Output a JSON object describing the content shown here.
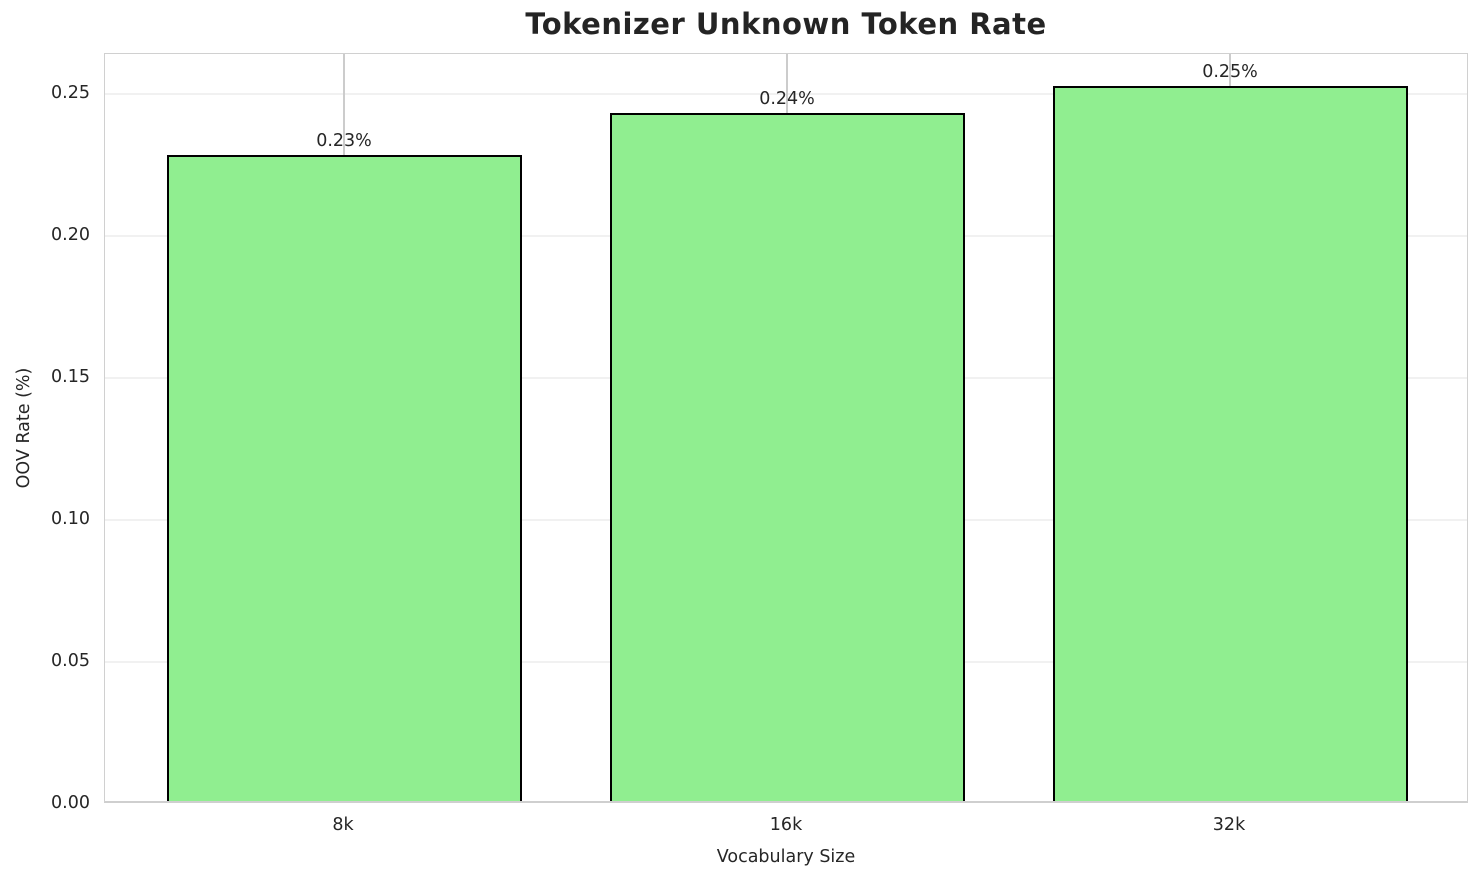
{
  "chart_data": {
    "type": "bar",
    "title": "Tokenizer Unknown Token Rate",
    "xlabel": "Vocabulary Size",
    "ylabel": "OOV Rate (%)",
    "categories": [
      "8k",
      "16k",
      "32k"
    ],
    "values": [
      0.2275,
      0.2422,
      0.2518
    ],
    "bar_labels": [
      "0.23%",
      "0.24%",
      "0.25%"
    ],
    "yticks": [
      0.0,
      0.05,
      0.1,
      0.15,
      0.2,
      0.25
    ],
    "ytick_labels": [
      "0.00",
      "0.05",
      "0.10",
      "0.15",
      "0.20",
      "0.25"
    ],
    "ylim": [
      0,
      0.264
    ],
    "grid": true,
    "legend": null,
    "colors": {
      "bar_fill": "#90EE90",
      "bar_edge": "#000000",
      "grid_horizontal": "#f1f1f1",
      "grid_vertical": "#cccccc",
      "spine": "#d0d0d0",
      "text": "#262626",
      "background": "#ffffff"
    }
  }
}
